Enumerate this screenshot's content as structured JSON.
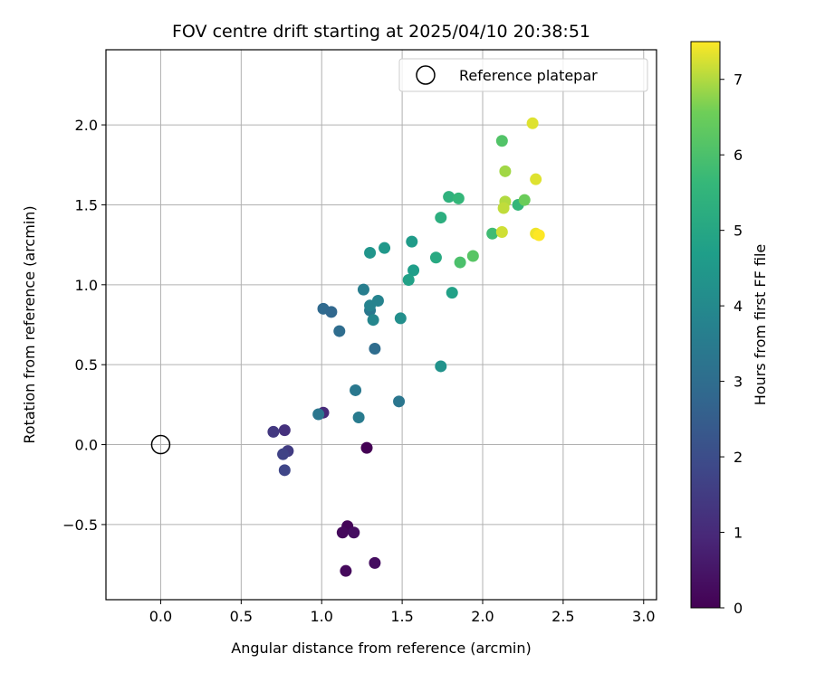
{
  "chart_data": {
    "type": "scatter",
    "title": "FOV centre drift starting at 2025/04/10 20:38:51",
    "xlabel": "Angular distance from reference (arcmin)",
    "ylabel": "Rotation from reference (arcmin)",
    "xlim": [
      -0.34,
      3.08
    ],
    "ylim": [
      -0.97,
      2.47
    ],
    "xticks": [
      0.0,
      0.5,
      1.0,
      1.5,
      2.0,
      2.5,
      3.0
    ],
    "xtick_labels": [
      "0.0",
      "0.5",
      "1.0",
      "1.5",
      "2.0",
      "2.5",
      "3.0"
    ],
    "yticks": [
      -0.5,
      0.0,
      0.5,
      1.0,
      1.5,
      2.0
    ],
    "ytick_labels": [
      "−0.5",
      "0.0",
      "0.5",
      "1.0",
      "1.5",
      "2.0"
    ],
    "grid": true,
    "legend": {
      "position": "top-right",
      "entries": [
        {
          "label": "Reference platepar",
          "marker": "open-circle",
          "x": 0.0,
          "y": 0.0
        }
      ]
    },
    "colorbar": {
      "label": "Hours from first FF file",
      "colormap": "viridis",
      "range": [
        0,
        7.5
      ],
      "ticks": [
        0,
        1,
        2,
        3,
        4,
        5,
        6,
        7
      ],
      "tick_labels": [
        "0",
        "1",
        "2",
        "3",
        "4",
        "5",
        "6",
        "7"
      ]
    },
    "points": [
      {
        "x": 1.28,
        "y": -0.02,
        "c": 0.0
      },
      {
        "x": 1.16,
        "y": -0.51,
        "c": 0.1
      },
      {
        "x": 1.13,
        "y": -0.55,
        "c": 0.2
      },
      {
        "x": 1.2,
        "y": -0.55,
        "c": 0.3
      },
      {
        "x": 1.15,
        "y": -0.79,
        "c": 0.2
      },
      {
        "x": 1.33,
        "y": -0.74,
        "c": 0.3
      },
      {
        "x": 1.01,
        "y": 0.2,
        "c": 1.0
      },
      {
        "x": 0.77,
        "y": 0.09,
        "c": 1.2
      },
      {
        "x": 0.7,
        "y": 0.08,
        "c": 1.4
      },
      {
        "x": 0.79,
        "y": -0.04,
        "c": 1.5
      },
      {
        "x": 0.76,
        "y": -0.06,
        "c": 1.7
      },
      {
        "x": 0.77,
        "y": -0.16,
        "c": 1.8
      },
      {
        "x": 0.98,
        "y": 0.19,
        "c": 3.3
      },
      {
        "x": 1.21,
        "y": 0.34,
        "c": 3.4
      },
      {
        "x": 1.23,
        "y": 0.17,
        "c": 3.5
      },
      {
        "x": 1.48,
        "y": 0.27,
        "c": 3.3
      },
      {
        "x": 1.33,
        "y": 0.6,
        "c": 3.0
      },
      {
        "x": 1.11,
        "y": 0.71,
        "c": 3.0
      },
      {
        "x": 1.01,
        "y": 0.85,
        "c": 2.9
      },
      {
        "x": 1.06,
        "y": 0.83,
        "c": 2.8
      },
      {
        "x": 1.3,
        "y": 0.84,
        "c": 3.4
      },
      {
        "x": 1.26,
        "y": 0.97,
        "c": 3.6
      },
      {
        "x": 1.3,
        "y": 0.87,
        "c": 3.8
      },
      {
        "x": 1.35,
        "y": 0.9,
        "c": 3.8
      },
      {
        "x": 1.32,
        "y": 0.78,
        "c": 3.9
      },
      {
        "x": 1.49,
        "y": 0.79,
        "c": 4.2
      },
      {
        "x": 1.74,
        "y": 0.49,
        "c": 4.3
      },
      {
        "x": 1.3,
        "y": 1.2,
        "c": 4.4
      },
      {
        "x": 1.39,
        "y": 1.23,
        "c": 4.5
      },
      {
        "x": 1.56,
        "y": 1.27,
        "c": 4.6
      },
      {
        "x": 1.57,
        "y": 1.09,
        "c": 4.7
      },
      {
        "x": 1.54,
        "y": 1.03,
        "c": 4.8
      },
      {
        "x": 1.81,
        "y": 0.95,
        "c": 4.8
      },
      {
        "x": 1.71,
        "y": 1.17,
        "c": 5.1
      },
      {
        "x": 1.74,
        "y": 1.42,
        "c": 5.3
      },
      {
        "x": 1.79,
        "y": 1.55,
        "c": 5.4
      },
      {
        "x": 1.85,
        "y": 1.54,
        "c": 5.6
      },
      {
        "x": 2.22,
        "y": 1.5,
        "c": 5.6
      },
      {
        "x": 2.06,
        "y": 1.32,
        "c": 5.8
      },
      {
        "x": 1.86,
        "y": 1.14,
        "c": 6.0
      },
      {
        "x": 1.94,
        "y": 1.18,
        "c": 6.2
      },
      {
        "x": 2.12,
        "y": 1.9,
        "c": 6.1
      },
      {
        "x": 2.26,
        "y": 1.53,
        "c": 6.5
      },
      {
        "x": 2.14,
        "y": 1.71,
        "c": 6.9
      },
      {
        "x": 2.14,
        "y": 1.52,
        "c": 7.0
      },
      {
        "x": 2.13,
        "y": 1.48,
        "c": 7.1
      },
      {
        "x": 2.12,
        "y": 1.33,
        "c": 7.2
      },
      {
        "x": 2.31,
        "y": 2.01,
        "c": 7.3
      },
      {
        "x": 2.33,
        "y": 1.66,
        "c": 7.3
      },
      {
        "x": 2.33,
        "y": 1.32,
        "c": 7.4
      },
      {
        "x": 2.35,
        "y": 1.31,
        "c": 7.5
      }
    ]
  }
}
